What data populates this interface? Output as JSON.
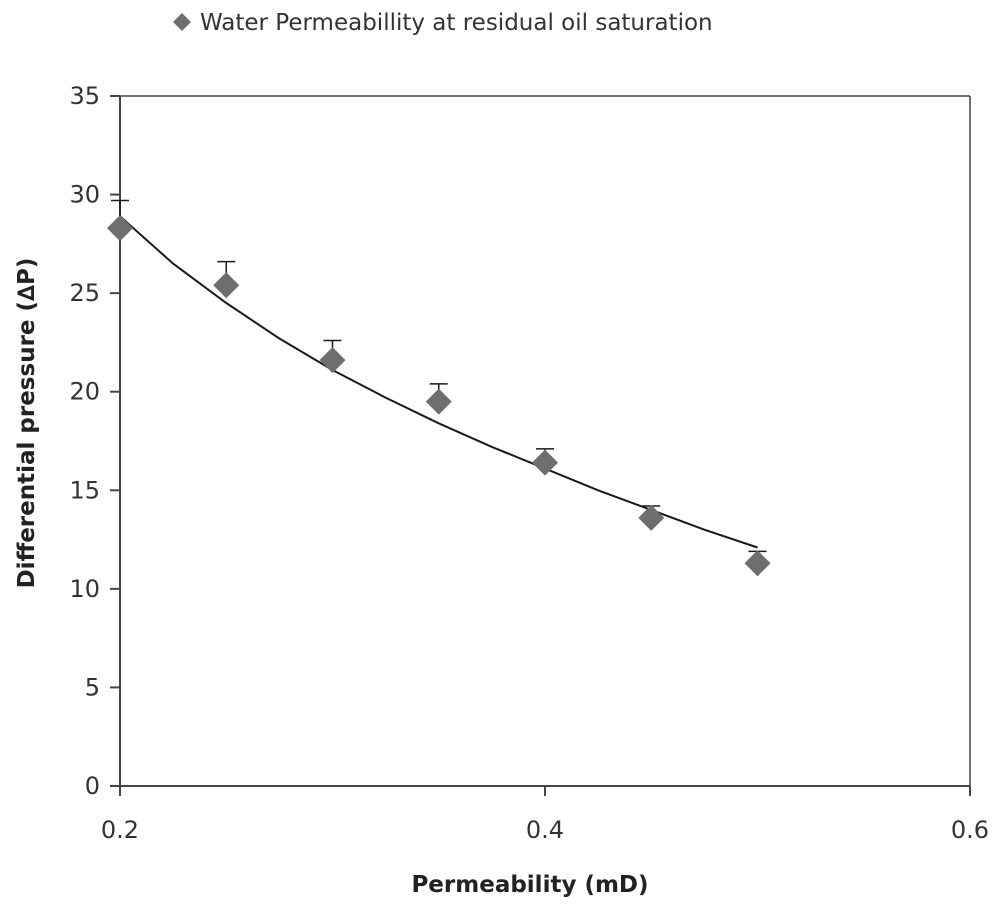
{
  "chart_data": {
    "type": "scatter",
    "xlabel": "Permeability (mD)",
    "ylabel": "Differential pressure (∆P)",
    "xlim": [
      0.2,
      0.6
    ],
    "ylim": [
      0,
      35
    ],
    "x_ticks": [
      0.2,
      0.4,
      0.6
    ],
    "x_tick_labels": [
      "0.2",
      "0.4",
      "0.6"
    ],
    "y_ticks": [
      0,
      5,
      10,
      15,
      20,
      25,
      30,
      35
    ],
    "y_tick_labels": [
      "0",
      "5",
      "10",
      "15",
      "20",
      "25",
      "30",
      "35"
    ],
    "grid": false,
    "legend_position": "top",
    "series": [
      {
        "name": "Water Permeabillity at residual oil saturation",
        "marker": "diamond",
        "x": [
          0.2,
          0.25,
          0.3,
          0.35,
          0.4,
          0.45,
          0.5
        ],
        "y": [
          28.3,
          25.4,
          21.6,
          19.5,
          16.4,
          13.6,
          11.3
        ],
        "error_plus": [
          1.4,
          1.2,
          1.0,
          0.9,
          0.7,
          0.6,
          0.6
        ]
      }
    ],
    "trendline": {
      "x": [
        0.2,
        0.225,
        0.25,
        0.275,
        0.3,
        0.325,
        0.35,
        0.375,
        0.4,
        0.425,
        0.45,
        0.475,
        0.5
      ],
      "y": [
        28.9,
        26.5,
        24.5,
        22.7,
        21.1,
        19.7,
        18.4,
        17.2,
        16.1,
        15.0,
        14.0,
        13.0,
        12.1
      ]
    },
    "colors": {
      "marker": "#6e6e6e",
      "line": "#1a1a1a",
      "axis": "#444444"
    }
  }
}
